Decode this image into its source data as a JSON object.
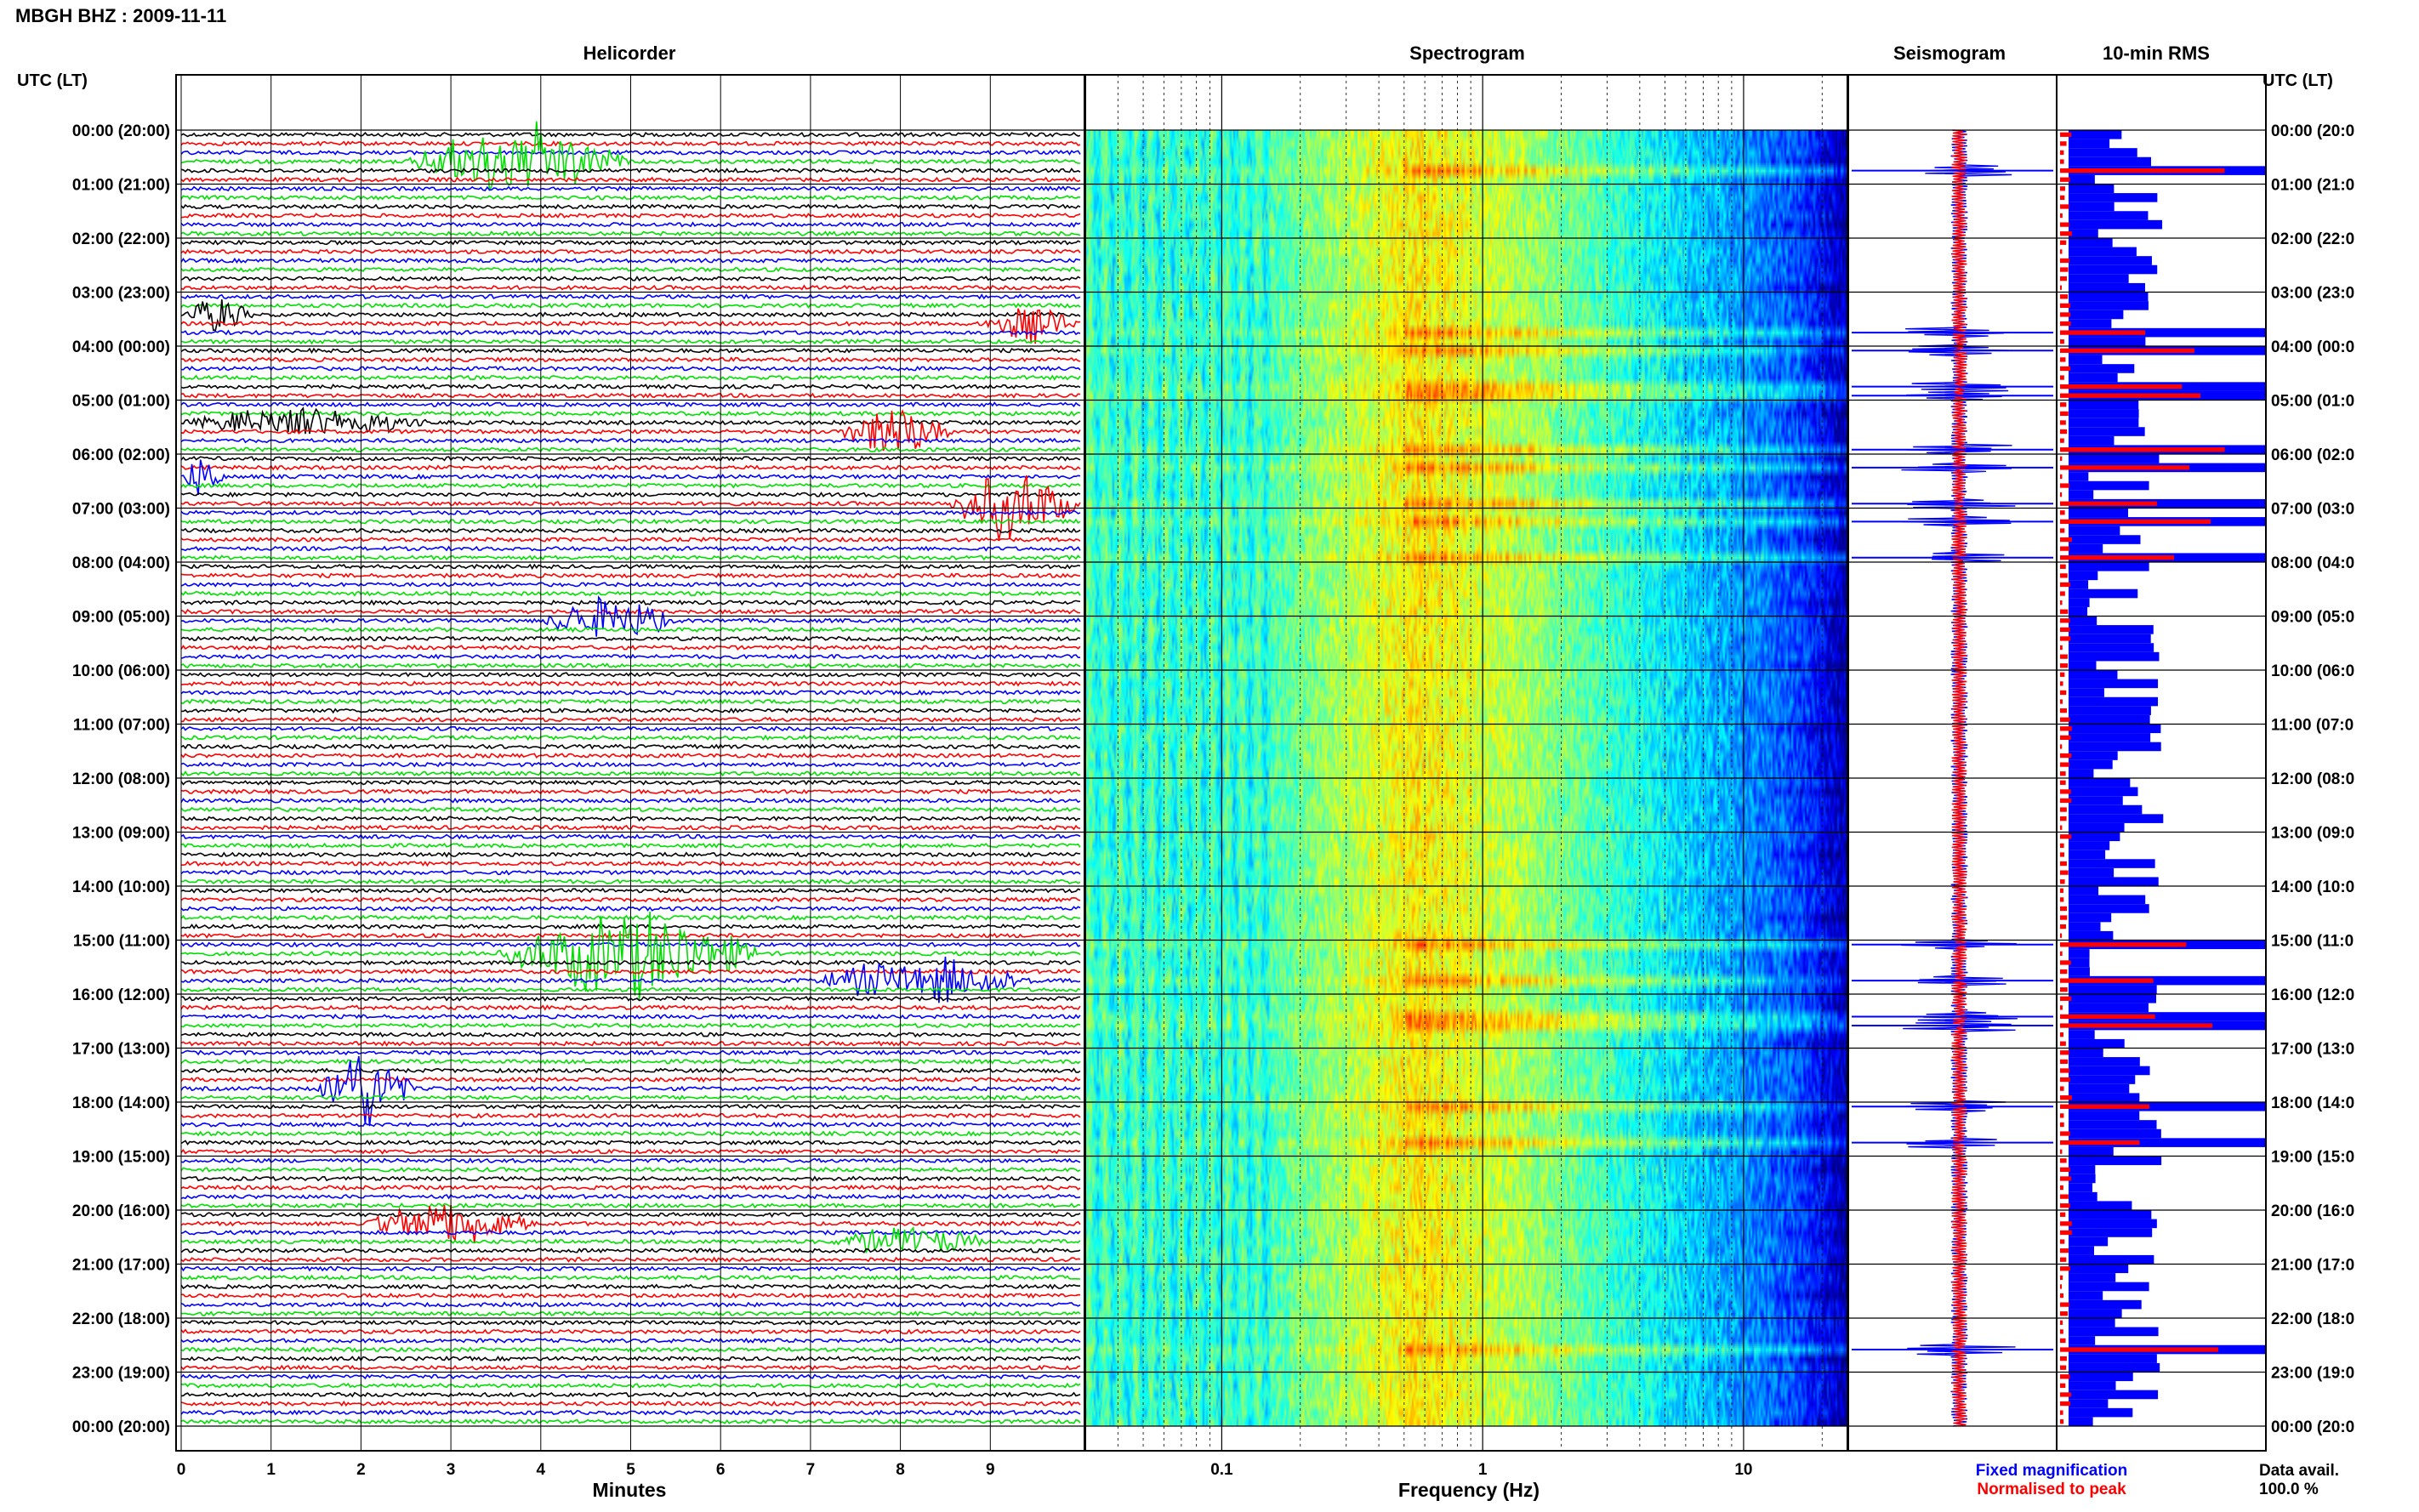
{
  "header": {
    "title": "MBGH BHZ : 2009-11-11",
    "left_axis_title": "UTC (LT)",
    "right_axis_title": "UTC (LT)"
  },
  "panels": {
    "helicorder": "Helicorder",
    "spectrogram": "Spectrogram",
    "seismogram": "Seismogram",
    "rms": "10-min RMS"
  },
  "footer": {
    "x_label_minutes": "Minutes",
    "x_label_frequency": "Frequency (Hz)",
    "legend_fixed": "Fixed magnification",
    "legend_normalised": "Normalised to peak",
    "data_avail_label": "Data avail.",
    "data_avail_value": "100.0 %"
  },
  "colors": {
    "trace_cycle": [
      "#000000",
      "#ff0000",
      "#0000ff",
      "#00e000"
    ],
    "fixed": "#0000ff",
    "normalised": "#ff0000"
  },
  "chart_data": [
    {
      "type": "line",
      "panel": "helicorder",
      "x_unit": "minutes",
      "xlim": [
        0,
        10
      ],
      "x_ticks": [
        "0",
        "1",
        "2",
        "3",
        "4",
        "5",
        "6",
        "7",
        "8",
        "9"
      ],
      "y_ticks_left": [
        "00:00 (20:00)",
        "01:00 (21:00)",
        "02:00 (22:00)",
        "03:00 (23:00)",
        "04:00 (00:00)",
        "05:00 (01:00)",
        "06:00 (02:00)",
        "07:00 (03:00)",
        "08:00 (04:00)",
        "09:00 (05:00)",
        "10:00 (06:00)",
        "11:00 (07:00)",
        "12:00 (08:00)",
        "13:00 (09:00)",
        "14:00 (10:00)",
        "15:00 (11:00)",
        "16:00 (12:00)",
        "17:00 (13:00)",
        "18:00 (14:00)",
        "19:00 (15:00)",
        "20:00 (16:00)",
        "21:00 (17:00)",
        "22:00 (18:00)",
        "23:00 (19:00)",
        "00:00 (20:00)"
      ],
      "y_ticks_right": [
        "00:00 (20:0",
        "01:00 (21:0",
        "02:00 (22:0",
        "03:00 (23:0",
        "04:00 (00:0",
        "05:00 (01:0",
        "06:00 (02:0",
        "07:00 (03:0",
        "08:00 (04:0",
        "09:00 (05:0",
        "10:00 (06:0",
        "11:00 (07:0",
        "12:00 (08:0",
        "13:00 (09:0",
        "14:00 (10:0",
        "15:00 (11:0",
        "16:00 (12:0",
        "17:00 (13:0",
        "18:00 (14:0",
        "19:00 (15:0",
        "20:00 (16:0",
        "21:00 (17:0",
        "22:00 (18:0",
        "23:00 (19:0",
        "00:00 (20:0"
      ],
      "rows": 144,
      "events": [
        {
          "row": 3,
          "start": 2.5,
          "end": 5.0,
          "amp": 5
        },
        {
          "row": 20,
          "start": 0.0,
          "end": 0.8,
          "amp": 2.5
        },
        {
          "row": 21,
          "start": 8.9,
          "end": 10.0,
          "amp": 2.5
        },
        {
          "row": 33,
          "start": 7.3,
          "end": 8.6,
          "amp": 4
        },
        {
          "row": 32,
          "start": 0.0,
          "end": 2.8,
          "amp": 2
        },
        {
          "row": 41,
          "start": 8.5,
          "end": 10.0,
          "amp": 5
        },
        {
          "row": 38,
          "start": 0.0,
          "end": 0.5,
          "amp": 3
        },
        {
          "row": 54,
          "start": 4.0,
          "end": 5.5,
          "amp": 3
        },
        {
          "row": 91,
          "start": 3.5,
          "end": 6.5,
          "amp": 6
        },
        {
          "row": 94,
          "start": 7.0,
          "end": 9.5,
          "amp": 3
        },
        {
          "row": 106,
          "start": 1.5,
          "end": 2.6,
          "amp": 6
        },
        {
          "row": 121,
          "start": 2.0,
          "end": 4.0,
          "amp": 3
        },
        {
          "row": 123,
          "start": 7.2,
          "end": 9.0,
          "amp": 2
        }
      ]
    },
    {
      "type": "heatmap",
      "panel": "spectrogram",
      "x_unit": "Hz",
      "x_scale": "log",
      "xlim": [
        0.03,
        25
      ],
      "x_ticks": [
        "0.1",
        "1",
        "10"
      ],
      "rows": 144,
      "colormap": "jet"
    },
    {
      "type": "line",
      "panel": "seismogram",
      "series": [
        {
          "name": "Fixed magnification",
          "color": "#0000ff"
        },
        {
          "name": "Normalised to peak",
          "color": "#ff0000"
        }
      ]
    },
    {
      "type": "bar",
      "panel": "10-min RMS",
      "orientation": "horizontal",
      "rows": 144,
      "series": [
        {
          "name": "Fixed magnification",
          "color": "#0000ff"
        },
        {
          "name": "Normalised to peak",
          "color": "#ff0000"
        }
      ],
      "spike_rows": [
        4,
        22,
        24,
        28,
        29,
        35,
        37,
        41,
        43,
        47,
        90,
        94,
        98,
        99,
        108,
        112,
        135
      ]
    }
  ]
}
